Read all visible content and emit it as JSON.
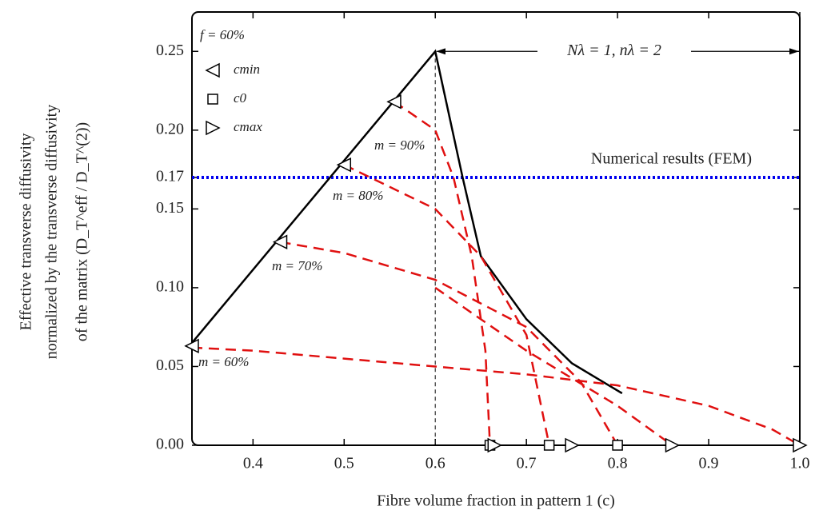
{
  "chart_data": {
    "type": "line",
    "xlabel": "Fibre volume fraction in pattern 1 (c)",
    "ylabel": [
      "Effective transverse diffusivity",
      "normalized by the transverse diffusivity",
      "of the matrix (D_T^eff / D_T^(2))"
    ],
    "xlim": [
      0.333,
      1.0
    ],
    "ylim": [
      0,
      0.275
    ],
    "xticks": [
      0.4,
      0.5,
      0.6,
      0.7,
      0.8,
      0.9,
      {
        "value": 1.0,
        "label": "1.0"
      }
    ],
    "yticks": [
      {
        "value": 0,
        "label": "0.00"
      },
      {
        "value": 0.05,
        "label": "0.05"
      },
      {
        "value": 0.1,
        "label": "0.10"
      },
      {
        "value": 0.15,
        "label": "0.15"
      },
      {
        "value": 0.17,
        "label": "0.17"
      },
      {
        "value": 0.2,
        "label": "0.20"
      },
      {
        "value": 0.25,
        "label": "0.25"
      }
    ],
    "legend": "upper left",
    "series": [
      {
        "style": "solid",
        "color": "#000000",
        "x": [
          0.333,
          0.6,
          0.63,
          0.65,
          0.7,
          0.75,
          0.805
        ],
        "values": [
          0.065,
          0.25,
          0.17,
          0.12,
          0.08,
          0.052,
          0.033
        ]
      },
      {
        "style": "dashed",
        "color": "#e01010",
        "x": [
          0.555,
          0.6,
          0.62,
          0.64,
          0.655,
          0.66
        ],
        "values": [
          0.218,
          0.2,
          0.17,
          0.12,
          0.06,
          0
        ]
      },
      {
        "style": "dashed",
        "color": "#e01010",
        "x": [
          0.5,
          0.6,
          0.65,
          0.7,
          0.725
        ],
        "values": [
          0.178,
          0.15,
          0.12,
          0.07,
          0
        ]
      },
      {
        "style": "dashed",
        "color": "#e01010",
        "x": [
          0.43,
          0.5,
          0.6,
          0.7,
          0.76,
          0.8
        ],
        "values": [
          0.129,
          0.122,
          0.105,
          0.075,
          0.04,
          0
        ]
      },
      {
        "style": "dashed",
        "color": "#e01010",
        "x": [
          0.6,
          0.7,
          0.8,
          0.86
        ],
        "values": [
          0.1,
          0.06,
          0.025,
          0
        ]
      },
      {
        "style": "dashed",
        "color": "#e01010",
        "x": [
          0.333,
          0.4,
          0.5,
          0.6,
          0.7,
          0.8,
          0.9,
          0.97,
          1.0
        ],
        "values": [
          0.062,
          0.06,
          0.055,
          0.05,
          0.045,
          0.038,
          0.025,
          0.01,
          0
        ]
      },
      {
        "style": "markers",
        "marker": "triangle-left",
        "name": "cmin",
        "color": "#000000",
        "x": [
          0.333,
          0.43,
          0.5,
          0.555
        ],
        "values": [
          0.063,
          0.129,
          0.178,
          0.218
        ]
      },
      {
        "style": "markers",
        "marker": "square",
        "name": "c0",
        "color": "#000000",
        "x": [
          0.66,
          0.725,
          0.8
        ],
        "values": [
          0,
          0,
          0
        ]
      },
      {
        "style": "markers",
        "marker": "triangle-right",
        "name": "cmax",
        "color": "#000000",
        "x": [
          0.665,
          0.75,
          0.86,
          1.0
        ],
        "values": [
          0,
          0,
          0,
          0
        ]
      }
    ],
    "hline": {
      "value": 0.17,
      "label": "Numerical results (FEM)",
      "color": "#0000ee"
    },
    "vline": 0.6,
    "arrow_label": "Nλ = 1,   nλ = 2",
    "annotations": [
      "f = 60%",
      "m = 90%",
      "m = 80%",
      "m = 70%",
      "m = 60%"
    ]
  }
}
